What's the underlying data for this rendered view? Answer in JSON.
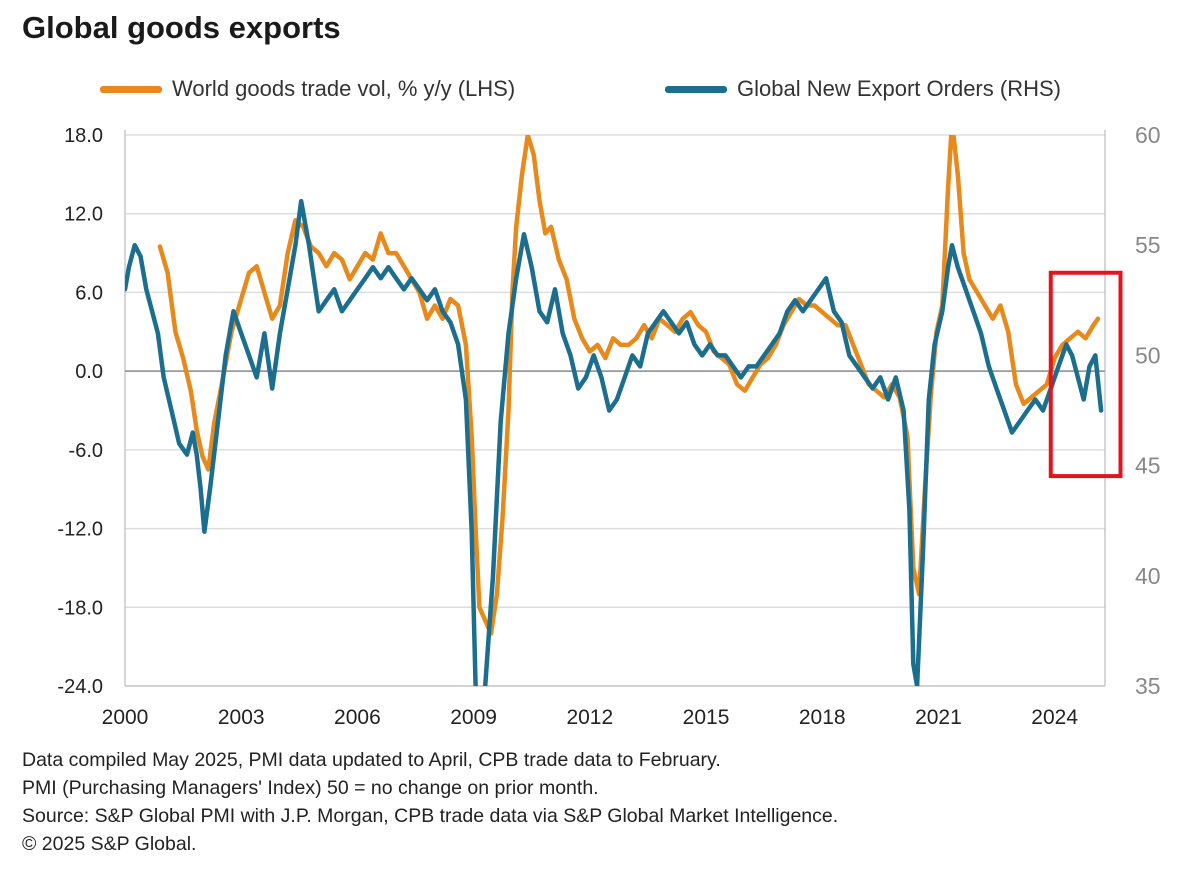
{
  "title": "Global goods exports",
  "colors": {
    "trade": "#E8891C",
    "pmi": "#1B6E8E",
    "highlight": "#E0161E",
    "axis_right_text": "#888888",
    "grid": "#dddddd"
  },
  "chart_data": {
    "type": "line",
    "legend": [
      {
        "label": "World goods trade vol, % y/y (LHS)",
        "color": "#E8891C"
      },
      {
        "label": "Global New Export Orders (RHS)",
        "color": "#1B6E8E"
      }
    ],
    "x_ticks": [
      "2000",
      "2003",
      "2006",
      "2009",
      "2012",
      "2015",
      "2018",
      "2021",
      "2024"
    ],
    "x_range": [
      2000.0,
      2025.3
    ],
    "left_axis": {
      "ticks": [
        "18.0",
        "12.0",
        "6.0",
        "0.0",
        "-6.0",
        "-12.0",
        "-18.0",
        "-24.0"
      ],
      "range": [
        -24,
        18
      ]
    },
    "right_axis": {
      "ticks": [
        "60",
        "55",
        "50",
        "45",
        "40",
        "35"
      ],
      "range": [
        35,
        60
      ]
    },
    "grid": true,
    "zero_line": true,
    "highlight_box": {
      "x_range": [
        2023.9,
        2025.7
      ],
      "y_range": [
        -8.0,
        7.5
      ],
      "note": "red rectangle highlighting the latest period"
    },
    "series": [
      {
        "name": "World goods trade vol, % y/y (LHS)",
        "axis": "left",
        "points": [
          [
            2000.9,
            9.5
          ],
          [
            2001.1,
            7.5
          ],
          [
            2001.3,
            3.0
          ],
          [
            2001.5,
            1.0
          ],
          [
            2001.7,
            -1.5
          ],
          [
            2001.85,
            -4.5
          ],
          [
            2002.0,
            -6.5
          ],
          [
            2002.15,
            -7.5
          ],
          [
            2002.3,
            -4.0
          ],
          [
            2002.5,
            -1.0
          ],
          [
            2002.75,
            3.0
          ],
          [
            2003.0,
            5.5
          ],
          [
            2003.2,
            7.5
          ],
          [
            2003.4,
            8.0
          ],
          [
            2003.6,
            6.0
          ],
          [
            2003.8,
            4.0
          ],
          [
            2004.0,
            5.0
          ],
          [
            2004.2,
            9.0
          ],
          [
            2004.4,
            11.5
          ],
          [
            2004.6,
            11.0
          ],
          [
            2004.8,
            9.5
          ],
          [
            2005.0,
            9.0
          ],
          [
            2005.2,
            8.0
          ],
          [
            2005.4,
            9.0
          ],
          [
            2005.6,
            8.5
          ],
          [
            2005.8,
            7.0
          ],
          [
            2006.0,
            8.0
          ],
          [
            2006.2,
            9.0
          ],
          [
            2006.4,
            8.5
          ],
          [
            2006.6,
            10.5
          ],
          [
            2006.8,
            9.0
          ],
          [
            2007.0,
            9.0
          ],
          [
            2007.2,
            8.0
          ],
          [
            2007.4,
            7.0
          ],
          [
            2007.6,
            6.0
          ],
          [
            2007.8,
            4.0
          ],
          [
            2008.0,
            5.0
          ],
          [
            2008.2,
            4.0
          ],
          [
            2008.4,
            5.5
          ],
          [
            2008.6,
            5.0
          ],
          [
            2008.8,
            2.0
          ],
          [
            2008.95,
            -5.0
          ],
          [
            2009.05,
            -12.0
          ],
          [
            2009.15,
            -18.0
          ],
          [
            2009.3,
            -19.0
          ],
          [
            2009.45,
            -20.0
          ],
          [
            2009.6,
            -17.0
          ],
          [
            2009.75,
            -11.0
          ],
          [
            2009.9,
            -3.0
          ],
          [
            2010.0,
            6.0
          ],
          [
            2010.1,
            11.0
          ],
          [
            2010.25,
            15.0
          ],
          [
            2010.4,
            18.0
          ],
          [
            2010.55,
            16.5
          ],
          [
            2010.7,
            13.0
          ],
          [
            2010.85,
            10.5
          ],
          [
            2011.0,
            11.0
          ],
          [
            2011.2,
            8.5
          ],
          [
            2011.4,
            7.0
          ],
          [
            2011.6,
            4.0
          ],
          [
            2011.8,
            2.5
          ],
          [
            2012.0,
            1.5
          ],
          [
            2012.2,
            2.0
          ],
          [
            2012.4,
            1.0
          ],
          [
            2012.6,
            2.5
          ],
          [
            2012.8,
            2.0
          ],
          [
            2013.0,
            2.0
          ],
          [
            2013.2,
            2.5
          ],
          [
            2013.4,
            3.5
          ],
          [
            2013.6,
            2.5
          ],
          [
            2013.8,
            4.0
          ],
          [
            2014.0,
            3.5
          ],
          [
            2014.2,
            3.0
          ],
          [
            2014.4,
            4.0
          ],
          [
            2014.6,
            4.5
          ],
          [
            2014.8,
            3.5
          ],
          [
            2015.0,
            3.0
          ],
          [
            2015.2,
            1.5
          ],
          [
            2015.4,
            1.0
          ],
          [
            2015.6,
            0.5
          ],
          [
            2015.8,
            -1.0
          ],
          [
            2016.0,
            -1.5
          ],
          [
            2016.2,
            -0.5
          ],
          [
            2016.4,
            0.5
          ],
          [
            2016.6,
            1.0
          ],
          [
            2016.8,
            2.0
          ],
          [
            2017.0,
            3.5
          ],
          [
            2017.2,
            4.5
          ],
          [
            2017.4,
            5.5
          ],
          [
            2017.6,
            5.0
          ],
          [
            2017.8,
            5.0
          ],
          [
            2018.0,
            4.5
          ],
          [
            2018.2,
            4.0
          ],
          [
            2018.4,
            3.5
          ],
          [
            2018.6,
            3.5
          ],
          [
            2018.8,
            2.0
          ],
          [
            2019.0,
            0.5
          ],
          [
            2019.2,
            -1.0
          ],
          [
            2019.4,
            -1.5
          ],
          [
            2019.6,
            -2.0
          ],
          [
            2019.8,
            -1.0
          ],
          [
            2020.0,
            -2.0
          ],
          [
            2020.2,
            -5.0
          ],
          [
            2020.35,
            -15.0
          ],
          [
            2020.5,
            -17.0
          ],
          [
            2020.65,
            -9.0
          ],
          [
            2020.8,
            -2.0
          ],
          [
            2020.95,
            3.0
          ],
          [
            2021.1,
            5.0
          ],
          [
            2021.25,
            14.0
          ],
          [
            2021.35,
            19.0
          ],
          [
            2021.5,
            15.0
          ],
          [
            2021.65,
            9.0
          ],
          [
            2021.8,
            7.0
          ],
          [
            2022.0,
            6.0
          ],
          [
            2022.2,
            5.0
          ],
          [
            2022.4,
            4.0
          ],
          [
            2022.6,
            5.0
          ],
          [
            2022.8,
            3.0
          ],
          [
            2023.0,
            -1.0
          ],
          [
            2023.2,
            -2.5
          ],
          [
            2023.4,
            -2.0
          ],
          [
            2023.6,
            -1.5
          ],
          [
            2023.8,
            -1.0
          ],
          [
            2024.0,
            1.0
          ],
          [
            2024.2,
            2.0
          ],
          [
            2024.4,
            2.5
          ],
          [
            2024.6,
            3.0
          ],
          [
            2024.8,
            2.5
          ],
          [
            2025.0,
            3.5
          ],
          [
            2025.12,
            4.0
          ]
        ]
      },
      {
        "name": "Global New Export Orders (RHS)",
        "axis": "right",
        "points": [
          [
            2000.0,
            53.0
          ],
          [
            2000.1,
            54.0
          ],
          [
            2000.25,
            55.0
          ],
          [
            2000.4,
            54.5
          ],
          [
            2000.55,
            53.0
          ],
          [
            2000.7,
            52.0
          ],
          [
            2000.85,
            51.0
          ],
          [
            2001.0,
            49.0
          ],
          [
            2001.2,
            47.5
          ],
          [
            2001.4,
            46.0
          ],
          [
            2001.6,
            45.5
          ],
          [
            2001.75,
            46.5
          ],
          [
            2001.85,
            45.5
          ],
          [
            2001.95,
            44.0
          ],
          [
            2002.05,
            42.0
          ],
          [
            2002.2,
            44.0
          ],
          [
            2002.4,
            47.0
          ],
          [
            2002.6,
            50.0
          ],
          [
            2002.8,
            52.0
          ],
          [
            2003.0,
            51.0
          ],
          [
            2003.2,
            50.0
          ],
          [
            2003.4,
            49.0
          ],
          [
            2003.6,
            51.0
          ],
          [
            2003.8,
            48.5
          ],
          [
            2004.0,
            51.0
          ],
          [
            2004.2,
            53.0
          ],
          [
            2004.4,
            55.0
          ],
          [
            2004.55,
            57.0
          ],
          [
            2004.75,
            55.0
          ],
          [
            2005.0,
            52.0
          ],
          [
            2005.2,
            52.5
          ],
          [
            2005.4,
            53.0
          ],
          [
            2005.6,
            52.0
          ],
          [
            2005.8,
            52.5
          ],
          [
            2006.0,
            53.0
          ],
          [
            2006.2,
            53.5
          ],
          [
            2006.4,
            54.0
          ],
          [
            2006.6,
            53.5
          ],
          [
            2006.8,
            54.0
          ],
          [
            2007.0,
            53.5
          ],
          [
            2007.2,
            53.0
          ],
          [
            2007.4,
            53.5
          ],
          [
            2007.6,
            53.0
          ],
          [
            2007.8,
            52.5
          ],
          [
            2008.0,
            53.0
          ],
          [
            2008.2,
            52.0
          ],
          [
            2008.4,
            51.5
          ],
          [
            2008.6,
            50.5
          ],
          [
            2008.8,
            48.0
          ],
          [
            2008.95,
            42.0
          ],
          [
            2009.05,
            35.0
          ],
          [
            2009.15,
            33.0
          ],
          [
            2009.3,
            35.0
          ],
          [
            2009.5,
            40.0
          ],
          [
            2009.7,
            47.0
          ],
          [
            2009.9,
            51.0
          ],
          [
            2010.1,
            53.5
          ],
          [
            2010.3,
            55.5
          ],
          [
            2010.5,
            54.0
          ],
          [
            2010.7,
            52.0
          ],
          [
            2010.9,
            51.5
          ],
          [
            2011.1,
            53.0
          ],
          [
            2011.3,
            51.0
          ],
          [
            2011.5,
            50.0
          ],
          [
            2011.7,
            48.5
          ],
          [
            2011.9,
            49.0
          ],
          [
            2012.1,
            50.0
          ],
          [
            2012.3,
            49.0
          ],
          [
            2012.5,
            47.5
          ],
          [
            2012.7,
            48.0
          ],
          [
            2012.9,
            49.0
          ],
          [
            2013.1,
            50.0
          ],
          [
            2013.3,
            49.5
          ],
          [
            2013.5,
            51.0
          ],
          [
            2013.7,
            51.5
          ],
          [
            2013.9,
            52.0
          ],
          [
            2014.1,
            51.5
          ],
          [
            2014.3,
            51.0
          ],
          [
            2014.5,
            51.5
          ],
          [
            2014.7,
            50.5
          ],
          [
            2014.9,
            50.0
          ],
          [
            2015.1,
            50.5
          ],
          [
            2015.3,
            50.0
          ],
          [
            2015.5,
            50.0
          ],
          [
            2015.7,
            49.5
          ],
          [
            2015.9,
            49.0
          ],
          [
            2016.1,
            49.5
          ],
          [
            2016.3,
            49.5
          ],
          [
            2016.5,
            50.0
          ],
          [
            2016.7,
            50.5
          ],
          [
            2016.9,
            51.0
          ],
          [
            2017.1,
            52.0
          ],
          [
            2017.3,
            52.5
          ],
          [
            2017.5,
            52.0
          ],
          [
            2017.7,
            52.5
          ],
          [
            2017.9,
            53.0
          ],
          [
            2018.1,
            53.5
          ],
          [
            2018.3,
            52.0
          ],
          [
            2018.5,
            51.5
          ],
          [
            2018.7,
            50.0
          ],
          [
            2018.9,
            49.5
          ],
          [
            2019.1,
            49.0
          ],
          [
            2019.3,
            48.5
          ],
          [
            2019.5,
            49.0
          ],
          [
            2019.7,
            48.0
          ],
          [
            2019.9,
            49.0
          ],
          [
            2020.1,
            47.5
          ],
          [
            2020.25,
            43.0
          ],
          [
            2020.35,
            36.0
          ],
          [
            2020.45,
            35.0
          ],
          [
            2020.6,
            41.0
          ],
          [
            2020.75,
            48.0
          ],
          [
            2020.9,
            50.5
          ],
          [
            2021.1,
            52.0
          ],
          [
            2021.25,
            54.0
          ],
          [
            2021.35,
            55.0
          ],
          [
            2021.5,
            54.0
          ],
          [
            2021.7,
            53.0
          ],
          [
            2021.9,
            52.0
          ],
          [
            2022.1,
            51.0
          ],
          [
            2022.3,
            49.5
          ],
          [
            2022.5,
            48.5
          ],
          [
            2022.7,
            47.5
          ],
          [
            2022.9,
            46.5
          ],
          [
            2023.1,
            47.0
          ],
          [
            2023.3,
            47.5
          ],
          [
            2023.5,
            48.0
          ],
          [
            2023.7,
            47.5
          ],
          [
            2023.9,
            48.5
          ],
          [
            2024.1,
            49.5
          ],
          [
            2024.3,
            50.5
          ],
          [
            2024.45,
            50.0
          ],
          [
            2024.6,
            49.0
          ],
          [
            2024.75,
            48.0
          ],
          [
            2024.9,
            49.5
          ],
          [
            2025.05,
            50.0
          ],
          [
            2025.2,
            47.5
          ]
        ]
      }
    ]
  },
  "notes": [
    "Data compiled May  2025, PMI data updated to April, CPB trade data to February.",
    "PMI (Purchasing Managers' Index) 50 = no change on prior month.",
    "Source: S&P Global PMI with J.P. Morgan, CPB trade data via S&P Global Market Intelligence.",
    "© 2025 S&P Global."
  ]
}
